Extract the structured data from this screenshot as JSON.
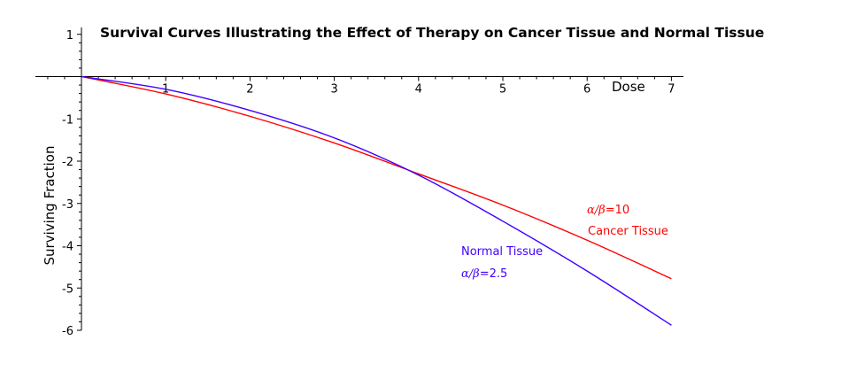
{
  "chart_data": {
    "type": "line",
    "title": "Survival Curves Illustrating the Effect of Therapy on Cancer Tissue and Normal Tissue",
    "xlabel": "Dose",
    "ylabel": "Surviving Fraction",
    "xlim": [
      0,
      7
    ],
    "ylim": [
      -6,
      1
    ],
    "xticks": [
      1,
      2,
      3,
      4,
      5,
      6,
      7
    ],
    "yticks": [
      1,
      -1,
      -2,
      -3,
      -4,
      -5,
      -6
    ],
    "grid": false,
    "series": [
      {
        "color": "#ff0000",
        "x": [
          0,
          1,
          2,
          3,
          4,
          5,
          6,
          7
        ],
        "y": [
          0,
          -0.41,
          -0.94,
          -1.57,
          -2.3,
          -3.04,
          -3.87,
          -4.78
        ]
      },
      {
        "color": "#3f00ff",
        "x": [
          0,
          1,
          2,
          3,
          4,
          5,
          6,
          7
        ],
        "y": [
          0,
          -0.3,
          -0.8,
          -1.45,
          -2.33,
          -3.42,
          -4.6,
          -5.88
        ]
      }
    ],
    "annotations": [
      {
        "math": "α/β",
        "text": "=10",
        "color": "#ff0000"
      },
      {
        "text": "Cancer Tissue",
        "color": "#ff0000"
      },
      {
        "text": "Normal Tissue",
        "color": "#3f00ff"
      },
      {
        "math": "α/β",
        "text": "=2.5",
        "color": "#3f00ff"
      }
    ]
  }
}
